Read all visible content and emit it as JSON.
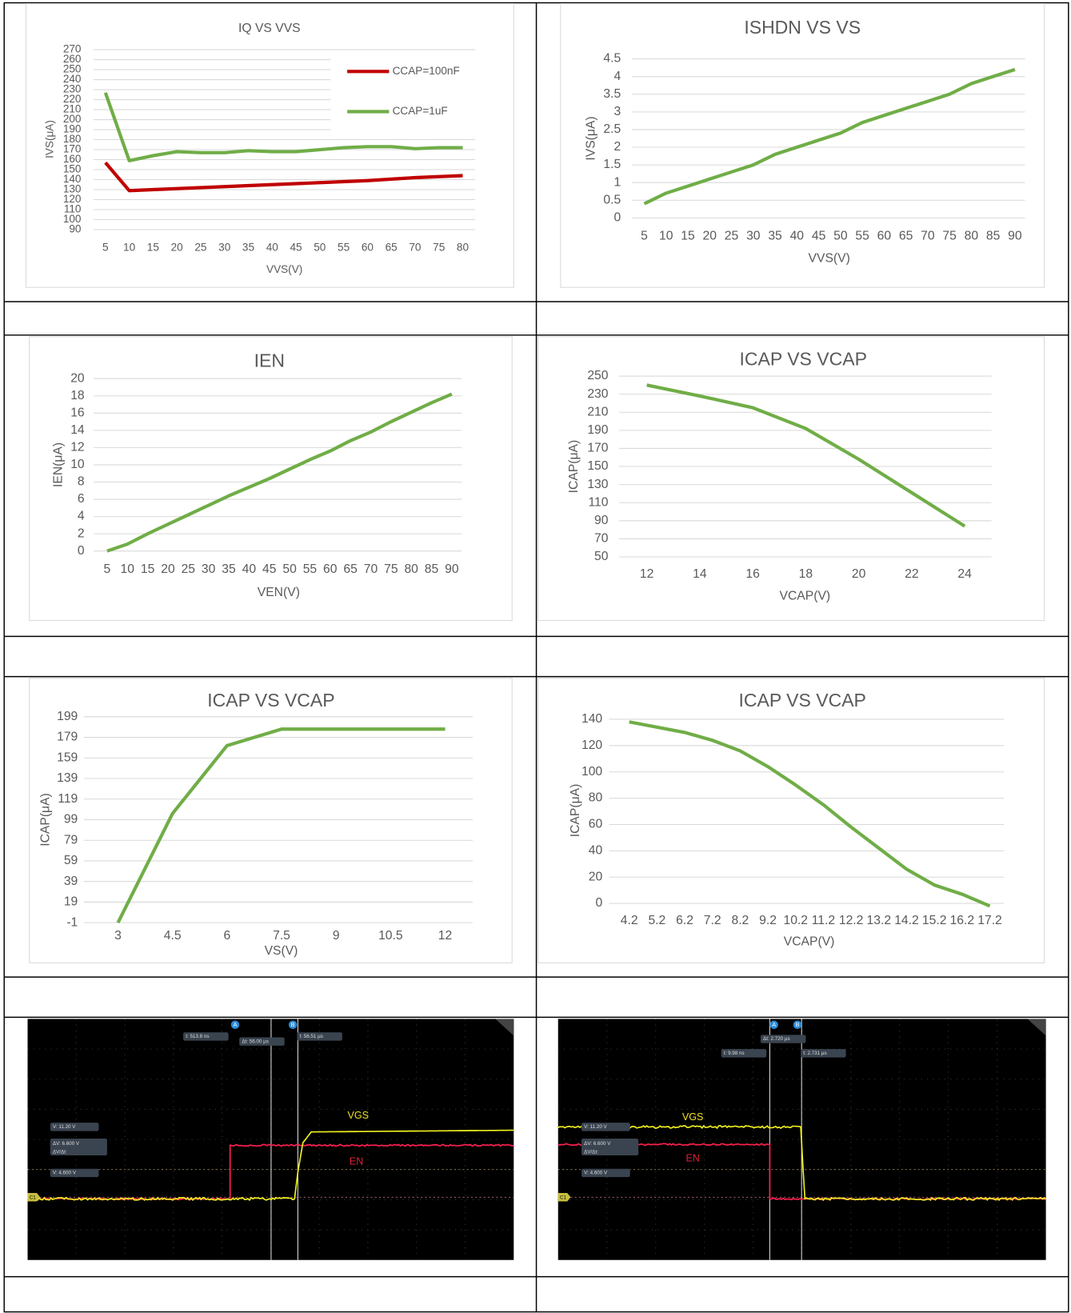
{
  "chart_data": [
    {
      "type": "line",
      "title": "IQ VS VVS",
      "y_label": "IVS(μA)",
      "x_label": "VVS(V)",
      "grid": true,
      "categories": [
        5,
        10,
        15,
        20,
        25,
        30,
        35,
        40,
        45,
        50,
        55,
        60,
        65,
        70,
        75,
        80
      ],
      "series": [
        {
          "name": "CCAP=100nF",
          "color": "#c00000",
          "values": [
            157,
            129,
            130,
            131,
            132,
            133,
            134,
            135,
            136,
            137,
            138,
            139,
            140.5,
            142,
            143,
            144
          ]
        },
        {
          "name": "CCAP=1uF",
          "color": "#70ad47",
          "values": [
            227,
            159,
            164,
            168,
            167,
            167,
            169,
            168,
            168,
            170,
            172,
            173,
            173,
            171,
            172,
            172
          ]
        }
      ],
      "ylim": [
        90,
        270
      ],
      "yticks": [
        90,
        100,
        110,
        120,
        130,
        140,
        150,
        160,
        170,
        180,
        190,
        200,
        210,
        220,
        230,
        240,
        250,
        260,
        270
      ]
    },
    {
      "type": "line",
      "title": "ISHDN VS VS",
      "y_label": "IVS(μA)",
      "x_label": "VVS(V)",
      "grid": true,
      "categories": [
        5,
        10,
        15,
        20,
        25,
        30,
        35,
        40,
        45,
        50,
        55,
        60,
        65,
        70,
        75,
        80,
        85,
        90
      ],
      "series": [
        {
          "color": "#70ad47",
          "values": [
            0.4,
            0.7,
            0.9,
            1.1,
            1.3,
            1.5,
            1.8,
            2.0,
            2.2,
            2.4,
            2.7,
            2.9,
            3.1,
            3.3,
            3.5,
            3.8,
            4.0,
            4.2
          ]
        }
      ],
      "ylim": [
        0,
        4.5
      ],
      "yticks": [
        0,
        0.5,
        1,
        1.5,
        2,
        2.5,
        3,
        3.5,
        4,
        4.5
      ]
    },
    {
      "type": "line",
      "title": "IEN",
      "y_label": "IEN(μA)",
      "x_label": "VEN(V)",
      "grid": true,
      "categories": [
        5,
        10,
        15,
        20,
        25,
        30,
        35,
        40,
        45,
        50,
        55,
        60,
        65,
        70,
        75,
        80,
        85,
        90
      ],
      "series": [
        {
          "color": "#70ad47",
          "values": [
            0,
            0.8,
            2,
            3.1,
            4.2,
            5.3,
            6.4,
            7.4,
            8.4,
            9.5,
            10.6,
            11.6,
            12.8,
            13.8,
            15,
            16.1,
            17.2,
            18.2
          ]
        }
      ],
      "ylim": [
        0,
        20
      ],
      "yticks": [
        0,
        2,
        4,
        6,
        8,
        10,
        12,
        14,
        16,
        18,
        20
      ]
    },
    {
      "type": "line",
      "title": "ICAP VS VCAP",
      "y_label": "ICAP(μA)",
      "x_label": "VCAP(V)",
      "grid": true,
      "categories": [
        12,
        14,
        16,
        18,
        20,
        22,
        24
      ],
      "series": [
        {
          "color": "#70ad47",
          "values": [
            240,
            228,
            215,
            192,
            158,
            121,
            84
          ]
        }
      ],
      "ylim": [
        50,
        250
      ],
      "yticks": [
        50,
        70,
        90,
        110,
        130,
        150,
        170,
        190,
        210,
        230,
        250
      ]
    },
    {
      "type": "line",
      "title": "ICAP VS VCAP",
      "y_label": "ICAP(μA)",
      "x_label": "VS(V)",
      "grid": true,
      "categories": [
        3,
        4.5,
        6,
        7.5,
        9,
        10.5,
        12
      ],
      "series": [
        {
          "color": "#70ad47",
          "values": [
            -1,
            105,
            171,
            187,
            187,
            187,
            187
          ]
        }
      ],
      "ylim": [
        -1,
        199
      ],
      "yticks": [
        -1,
        19,
        39,
        59,
        79,
        99,
        119,
        139,
        159,
        179,
        199
      ]
    },
    {
      "type": "line",
      "title": "ICAP VS VCAP",
      "y_label": "ICAP(μA)",
      "x_label": "VCAP(V)",
      "grid": true,
      "categories": [
        4.2,
        5.2,
        6.2,
        7.2,
        8.2,
        9.2,
        10.2,
        11.2,
        12.2,
        13.2,
        14.2,
        15.2,
        16.2,
        17.2
      ],
      "series": [
        {
          "color": "#70ad47",
          "values": [
            138,
            134,
            130,
            124,
            116,
            104,
            90,
            75,
            58,
            42,
            26,
            14,
            7,
            -2
          ]
        }
      ],
      "ylim": [
        0,
        140
      ],
      "yticks": [
        0,
        20,
        40,
        60,
        80,
        100,
        120,
        140
      ]
    }
  ],
  "scope_captures": [
    {
      "trace_labels": [
        "VGS",
        "EN"
      ],
      "cursor_labels": [
        "A",
        "B"
      ],
      "channel_label": "C1",
      "time_readouts": [
        "t: 513.8 ns",
        "Δt: 56.00 µs",
        "t: 56.51 µs"
      ],
      "level_readouts": [
        "V: 11.20 V",
        "ΔV: 6.600 V",
        "ΔV/Δt:",
        "V: 4.600 V"
      ]
    },
    {
      "trace_labels": [
        "VGS",
        "EN"
      ],
      "cursor_labels": [
        "A",
        "B"
      ],
      "channel_label": "C1",
      "time_readouts": [
        "Δt: 2.720 µs",
        "t: 9.98 ns",
        "t: 2.731 µs"
      ],
      "level_readouts": [
        "V: 11.20 V",
        "ΔV: 6.600 V",
        "ΔV/Δt:",
        "V: 4.600 V"
      ]
    }
  ]
}
